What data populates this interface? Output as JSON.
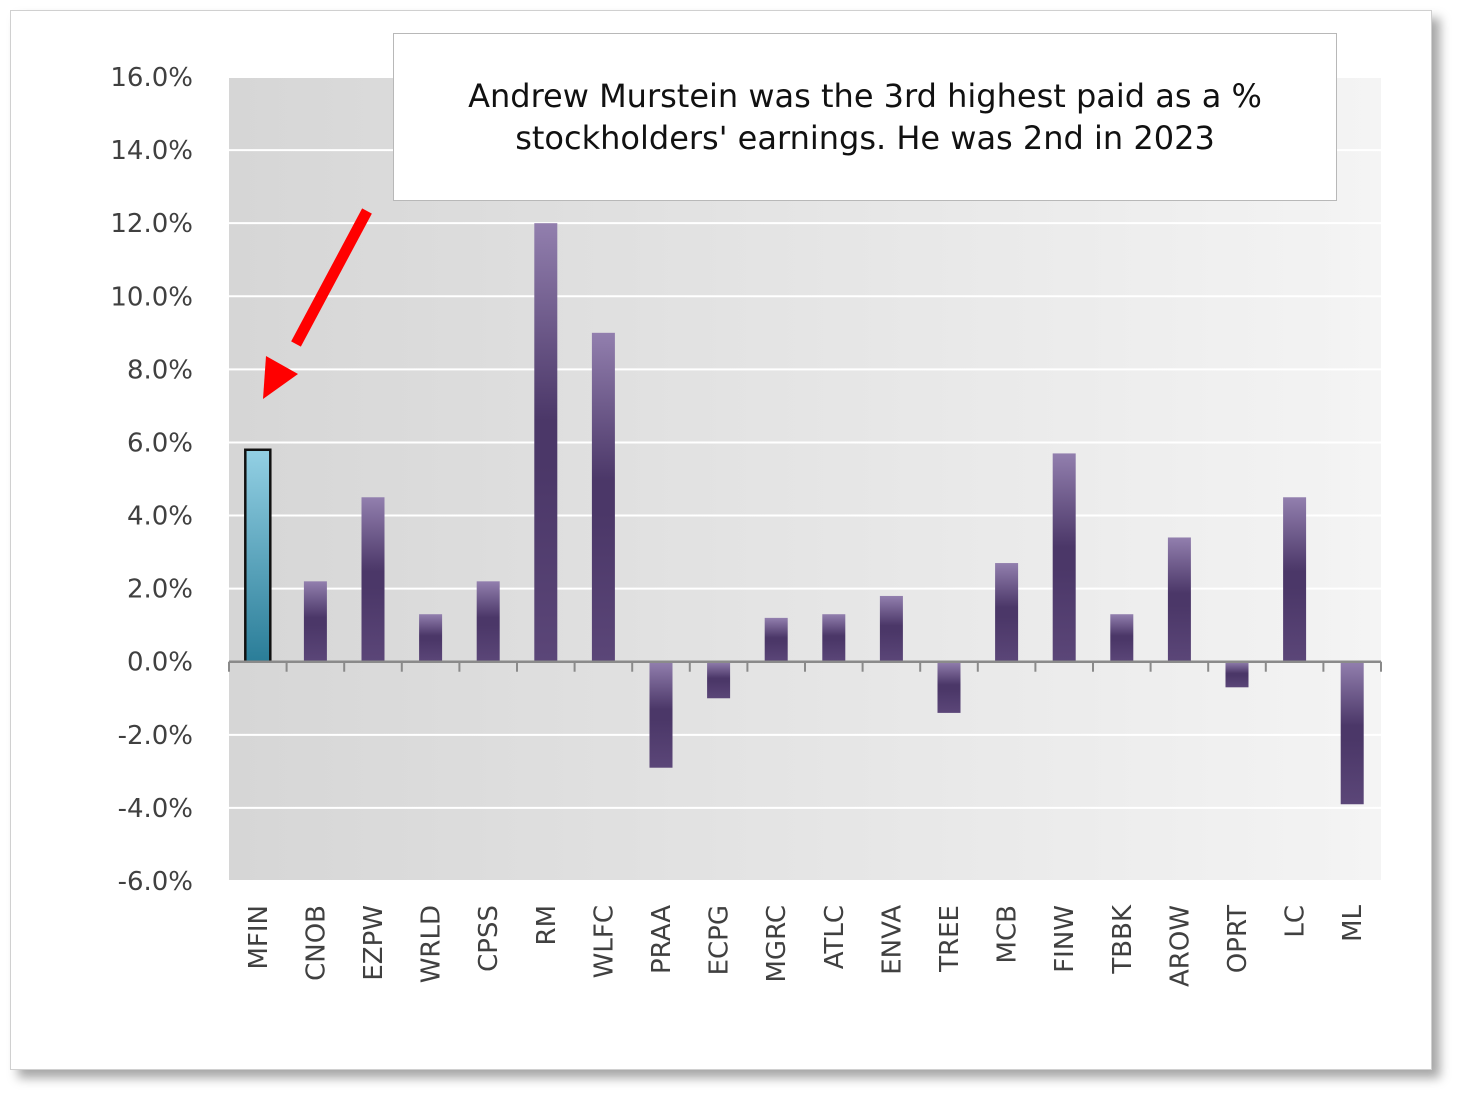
{
  "annotation": {
    "text": "Andrew Murstein was the 3rd highest paid as a % stockholders' earnings. He was 2nd in 2023"
  },
  "colors": {
    "highlight_top": "#8ecbe0",
    "highlight_bottom": "#2a7f9a",
    "bar_light": "#8f7ba8",
    "bar_dark": "#4b3768",
    "arrow": "#ff0000"
  },
  "chart_data": {
    "type": "bar",
    "categories": [
      "MFIN",
      "CNOB",
      "EZPW",
      "WRLD",
      "CPSS",
      "RM",
      "WLFC",
      "PRAA",
      "ECPG",
      "MGRC",
      "ATLC",
      "ENVA",
      "TREE",
      "MCB",
      "FINW",
      "TBBK",
      "AROW",
      "OPRT",
      "LC",
      "ML"
    ],
    "values": [
      5.8,
      2.2,
      4.5,
      1.3,
      2.2,
      12.0,
      9.0,
      -2.9,
      -1.0,
      1.2,
      1.3,
      1.8,
      -1.4,
      2.7,
      5.7,
      1.3,
      3.4,
      -0.7,
      4.5,
      -3.9
    ],
    "highlight": "MFIN",
    "ylim": [
      -6,
      16
    ],
    "yticks": [
      "16.0%",
      "14.0%",
      "12.0%",
      "10.0%",
      "8.0%",
      "6.0%",
      "4.0%",
      "2.0%",
      "0.0%",
      "-2.0%",
      "-4.0%",
      "-6.0%"
    ],
    "grid": true,
    "title": "",
    "xlabel": "",
    "ylabel": ""
  }
}
